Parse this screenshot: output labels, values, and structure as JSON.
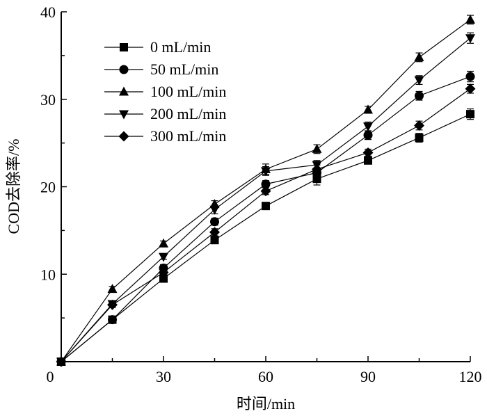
{
  "chart_data": {
    "type": "line",
    "title": "",
    "xlabel": "时间/min",
    "ylabel": "COD去除率/%",
    "xlim": [
      0,
      120
    ],
    "ylim": [
      0,
      40
    ],
    "xticks": [
      0,
      30,
      60,
      90,
      120
    ],
    "yticks": [
      10,
      20,
      30,
      40
    ],
    "grid": false,
    "legend_position": "top-left",
    "x": [
      0,
      15,
      30,
      45,
      60,
      75,
      90,
      105,
      120
    ],
    "series": [
      {
        "name": "0 mL/min",
        "marker": "square",
        "values": [
          0,
          4.8,
          9.5,
          13.9,
          17.8,
          20.9,
          23.0,
          25.6,
          28.3
        ],
        "errors": [
          0,
          0.3,
          0.4,
          0.4,
          0.4,
          0.7,
          0.4,
          0.5,
          0.6
        ]
      },
      {
        "name": "50 mL/min",
        "marker": "circle",
        "values": [
          0,
          4.8,
          10.7,
          16.0,
          20.3,
          21.6,
          25.9,
          30.4,
          32.6
        ],
        "errors": [
          0,
          0.3,
          0.4,
          0.4,
          0.4,
          0.5,
          0.5,
          0.5,
          0.6
        ]
      },
      {
        "name": "100 mL/min",
        "marker": "triangle-up",
        "values": [
          0,
          8.3,
          13.5,
          18.0,
          22.0,
          24.3,
          28.8,
          34.8,
          39.1
        ],
        "errors": [
          0,
          0.3,
          0.3,
          0.4,
          0.6,
          0.5,
          0.4,
          0.5,
          0.5
        ]
      },
      {
        "name": "200 mL/min",
        "marker": "triangle-down",
        "values": [
          0,
          6.6,
          12.0,
          17.4,
          21.8,
          22.5,
          26.9,
          32.2,
          37.0
        ],
        "errors": [
          0,
          0.3,
          0.3,
          0.5,
          0.5,
          0.5,
          0.5,
          0.5,
          0.6
        ]
      },
      {
        "name": "300 mL/min",
        "marker": "diamond",
        "values": [
          0,
          6.5,
          10.2,
          14.8,
          19.5,
          22.0,
          23.9,
          27.0,
          31.2
        ],
        "errors": [
          0,
          0.3,
          0.3,
          0.4,
          0.4,
          0.5,
          0.4,
          0.5,
          0.5
        ]
      }
    ]
  }
}
